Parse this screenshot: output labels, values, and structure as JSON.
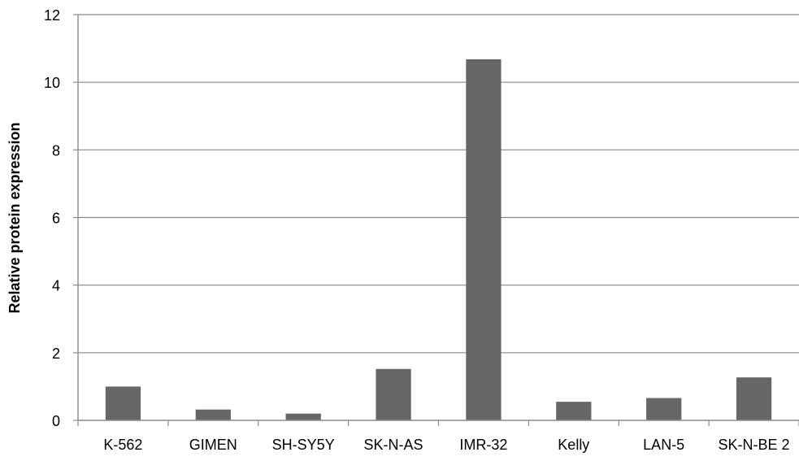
{
  "chart_data": {
    "type": "bar",
    "title": "",
    "xlabel": "",
    "ylabel": "Relative protein expression",
    "categories": [
      "K-562",
      "GIMEN",
      "SH-SY5Y",
      "SK-N-AS",
      "IMR-32",
      "Kelly",
      "LAN-5",
      "SK-N-BE 2"
    ],
    "values": [
      1.0,
      0.32,
      0.2,
      1.52,
      10.68,
      0.55,
      0.66,
      1.27
    ],
    "ylim": [
      0,
      12
    ],
    "yticks": [
      0,
      2,
      4,
      6,
      8,
      10,
      12
    ],
    "grid": true,
    "legend": "none",
    "bar_color": "#666666",
    "grid_color": "#888888",
    "axis_color": "#8c8c8c"
  }
}
